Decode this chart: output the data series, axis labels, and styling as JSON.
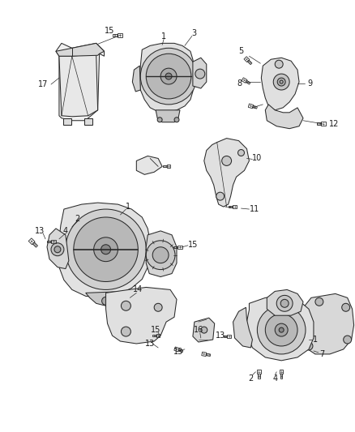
{
  "background_color": "#ffffff",
  "line_color": "#2a2a2a",
  "label_color": "#1a1a1a",
  "fig_width": 4.39,
  "fig_height": 5.33,
  "dpi": 100,
  "lw": 0.75,
  "fontsize": 7.0
}
